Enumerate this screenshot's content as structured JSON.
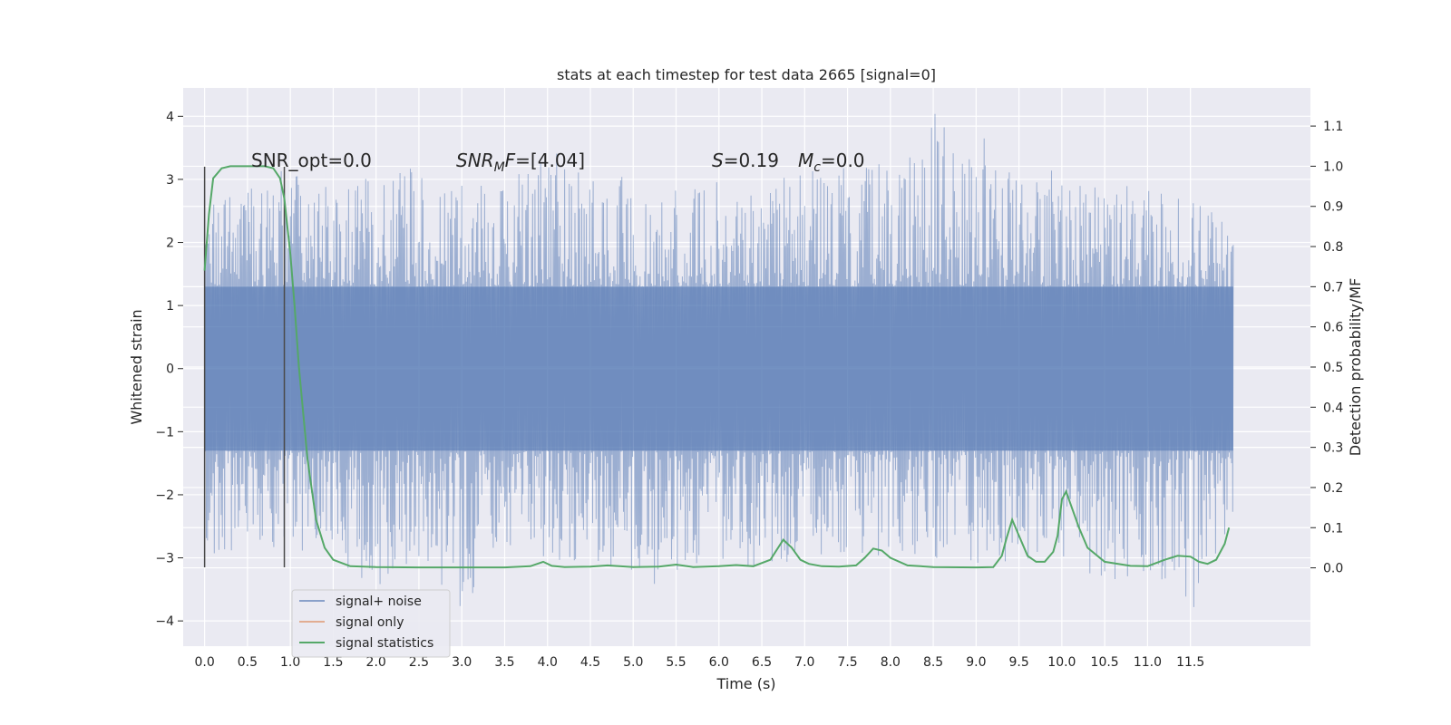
{
  "chart_data": {
    "type": "line",
    "title": "stats at each timestep for test data 2665 [signal=0]",
    "xlabel": "Time (s)",
    "ylabel": "Whitened strain",
    "y2label": "Detection probability/MF",
    "xlim": [
      -0.25,
      12.9
    ],
    "ylim": [
      -4.4,
      4.45
    ],
    "y2lim": [
      -0.195,
      1.195
    ],
    "xticks": [
      "0.0",
      "0.5",
      "1.0",
      "1.5",
      "2.0",
      "2.5",
      "3.0",
      "3.5",
      "4.0",
      "4.5",
      "5.0",
      "5.5",
      "6.0",
      "6.5",
      "7.0",
      "7.5",
      "8.0",
      "8.5",
      "9.0",
      "9.5",
      "10.0",
      "10.5",
      "11.0",
      "11.5"
    ],
    "yticks": [
      "4",
      "3",
      "2",
      "1",
      "0",
      "−1",
      "−2",
      "−3",
      "−4"
    ],
    "y2ticks": [
      "1.1",
      "1.0",
      "0.9",
      "0.8",
      "0.7",
      "0.6",
      "0.5",
      "0.4",
      "0.3",
      "0.2",
      "0.1",
      "0.0"
    ],
    "grid": true,
    "legend_position": "lower-left",
    "annotations": {
      "snr_opt": "SNR_opt=0.0",
      "snr_mf": "SNR_MF=[4.04]",
      "s_stat": "S=0.19",
      "mc": "M_c=0.0"
    },
    "markers_x": [
      0.0,
      0.93
    ],
    "series": [
      {
        "name": "signal+ noise",
        "color": "#4c72b0",
        "axis": "left",
        "x_range": [
          0.0,
          12.0
        ],
        "core_band": [
          -1.3,
          1.3
        ],
        "envelope": {
          "x": [
            0.0,
            0.5,
            1.0,
            1.5,
            2.0,
            2.5,
            3.0,
            3.5,
            4.0,
            4.5,
            5.0,
            5.5,
            6.0,
            6.5,
            7.0,
            7.5,
            8.0,
            8.5,
            9.0,
            9.5,
            10.0,
            10.5,
            11.0,
            11.5,
            12.0
          ],
          "upper": [
            2.6,
            3.0,
            3.2,
            2.9,
            3.1,
            3.2,
            2.9,
            3.0,
            3.6,
            3.0,
            3.1,
            3.0,
            3.1,
            3.0,
            3.2,
            3.2,
            3.3,
            4.1,
            3.8,
            3.1,
            3.3,
            3.0,
            2.9,
            2.7,
            2.3
          ],
          "lower": [
            -3.1,
            -2.8,
            -2.9,
            -3.0,
            -3.5,
            -3.1,
            -3.8,
            -3.0,
            -3.3,
            -3.0,
            -3.7,
            -3.2,
            -3.0,
            -3.2,
            -3.0,
            -2.9,
            -3.0,
            -3.0,
            -3.1,
            -3.1,
            -3.0,
            -3.5,
            -3.2,
            -4.0,
            -2.5
          ]
        }
      },
      {
        "name": "signal only",
        "color": "#dd8452",
        "axis": "left",
        "x": [],
        "y": []
      },
      {
        "name": "signal statistics",
        "color": "#55a868",
        "axis": "right",
        "x": [
          0.0,
          0.05,
          0.1,
          0.2,
          0.3,
          0.5,
          0.7,
          0.8,
          0.88,
          0.93,
          1.0,
          1.05,
          1.1,
          1.2,
          1.3,
          1.4,
          1.5,
          1.7,
          2.0,
          2.5,
          3.0,
          3.5,
          3.8,
          3.95,
          4.05,
          4.2,
          4.5,
          4.7,
          5.0,
          5.3,
          5.5,
          5.7,
          6.0,
          6.2,
          6.4,
          6.6,
          6.75,
          6.85,
          6.95,
          7.05,
          7.2,
          7.4,
          7.6,
          7.7,
          7.8,
          7.9,
          8.0,
          8.2,
          8.5,
          9.0,
          9.2,
          9.3,
          9.35,
          9.42,
          9.5,
          9.6,
          9.7,
          9.8,
          9.9,
          9.95,
          10.0,
          10.05,
          10.1,
          10.2,
          10.3,
          10.5,
          10.8,
          11.0,
          11.2,
          11.35,
          11.5,
          11.6,
          11.7,
          11.8,
          11.9,
          11.95
        ],
        "y": [
          0.74,
          0.88,
          0.97,
          0.995,
          1.0,
          1.0,
          1.0,
          0.995,
          0.97,
          0.92,
          0.78,
          0.65,
          0.5,
          0.27,
          0.12,
          0.05,
          0.02,
          0.004,
          0.002,
          0.001,
          0.001,
          0.001,
          0.004,
          0.015,
          0.005,
          0.002,
          0.003,
          0.006,
          0.002,
          0.003,
          0.008,
          0.002,
          0.004,
          0.007,
          0.004,
          0.02,
          0.07,
          0.05,
          0.02,
          0.01,
          0.004,
          0.003,
          0.006,
          0.025,
          0.048,
          0.043,
          0.025,
          0.006,
          0.002,
          0.001,
          0.002,
          0.03,
          0.07,
          0.12,
          0.08,
          0.03,
          0.015,
          0.015,
          0.04,
          0.08,
          0.17,
          0.19,
          0.16,
          0.1,
          0.05,
          0.015,
          0.005,
          0.004,
          0.02,
          0.03,
          0.028,
          0.015,
          0.01,
          0.02,
          0.06,
          0.1
        ]
      }
    ]
  }
}
